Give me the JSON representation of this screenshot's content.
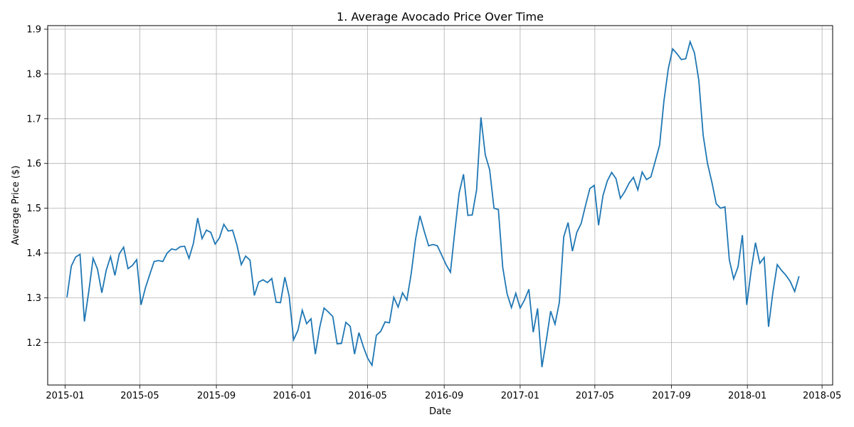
{
  "chart_data": {
    "type": "line",
    "title": "1. Average Avocado Price Over Time",
    "xlabel": "Date",
    "ylabel": "Average Price ($)",
    "grid": true,
    "line_color": "#1f77b4",
    "xlim": [
      "2014-12-04",
      "2018-05-18"
    ],
    "ylim": [
      1.105,
      1.908
    ],
    "x_ticks": [
      "2015-01",
      "2015-05",
      "2015-09",
      "2016-01",
      "2016-05",
      "2016-09",
      "2017-01",
      "2017-05",
      "2017-09",
      "2018-01",
      "2018-05"
    ],
    "y_ticks": [
      1.2,
      1.3,
      1.4,
      1.5,
      1.6,
      1.7,
      1.8,
      1.9
    ],
    "series": [
      {
        "start_date": "2015-01-04",
        "interval_days": 7,
        "values": [
          1.301,
          1.371,
          1.391,
          1.397,
          1.247,
          1.314,
          1.388,
          1.364,
          1.311,
          1.361,
          1.392,
          1.35,
          1.398,
          1.413,
          1.365,
          1.372,
          1.385,
          1.284,
          1.322,
          1.352,
          1.381,
          1.383,
          1.381,
          1.4,
          1.409,
          1.407,
          1.414,
          1.415,
          1.388,
          1.421,
          1.478,
          1.432,
          1.451,
          1.446,
          1.42,
          1.434,
          1.464,
          1.449,
          1.451,
          1.418,
          1.374,
          1.393,
          1.384,
          1.305,
          1.335,
          1.34,
          1.334,
          1.343,
          1.29,
          1.289,
          1.346,
          1.303,
          1.206,
          1.227,
          1.272,
          1.242,
          1.253,
          1.174,
          1.234,
          1.277,
          1.268,
          1.258,
          1.197,
          1.198,
          1.245,
          1.236,
          1.174,
          1.222,
          1.191,
          1.165,
          1.149,
          1.216,
          1.225,
          1.246,
          1.244,
          1.301,
          1.279,
          1.311,
          1.295,
          1.354,
          1.431,
          1.483,
          1.448,
          1.416,
          1.419,
          1.416,
          1.395,
          1.374,
          1.357,
          1.448,
          1.534,
          1.576,
          1.484,
          1.485,
          1.541,
          1.703,
          1.619,
          1.586,
          1.5,
          1.497,
          1.368,
          1.309,
          1.278,
          1.31,
          1.277,
          1.295,
          1.319,
          1.223,
          1.276,
          1.145,
          1.205,
          1.27,
          1.241,
          1.29,
          1.436,
          1.468,
          1.404,
          1.446,
          1.466,
          1.506,
          1.544,
          1.551,
          1.462,
          1.528,
          1.561,
          1.58,
          1.566,
          1.522,
          1.537,
          1.556,
          1.569,
          1.541,
          1.581,
          1.564,
          1.57,
          1.605,
          1.641,
          1.74,
          1.812,
          1.856,
          1.845,
          1.832,
          1.834,
          1.872,
          1.847,
          1.786,
          1.663,
          1.6,
          1.558,
          1.51,
          1.5,
          1.503,
          1.385,
          1.342,
          1.369,
          1.44,
          1.284,
          1.36,
          1.423,
          1.377,
          1.39,
          1.235,
          1.312,
          1.374,
          1.361,
          1.35,
          1.336,
          1.314,
          1.348
        ]
      }
    ]
  }
}
